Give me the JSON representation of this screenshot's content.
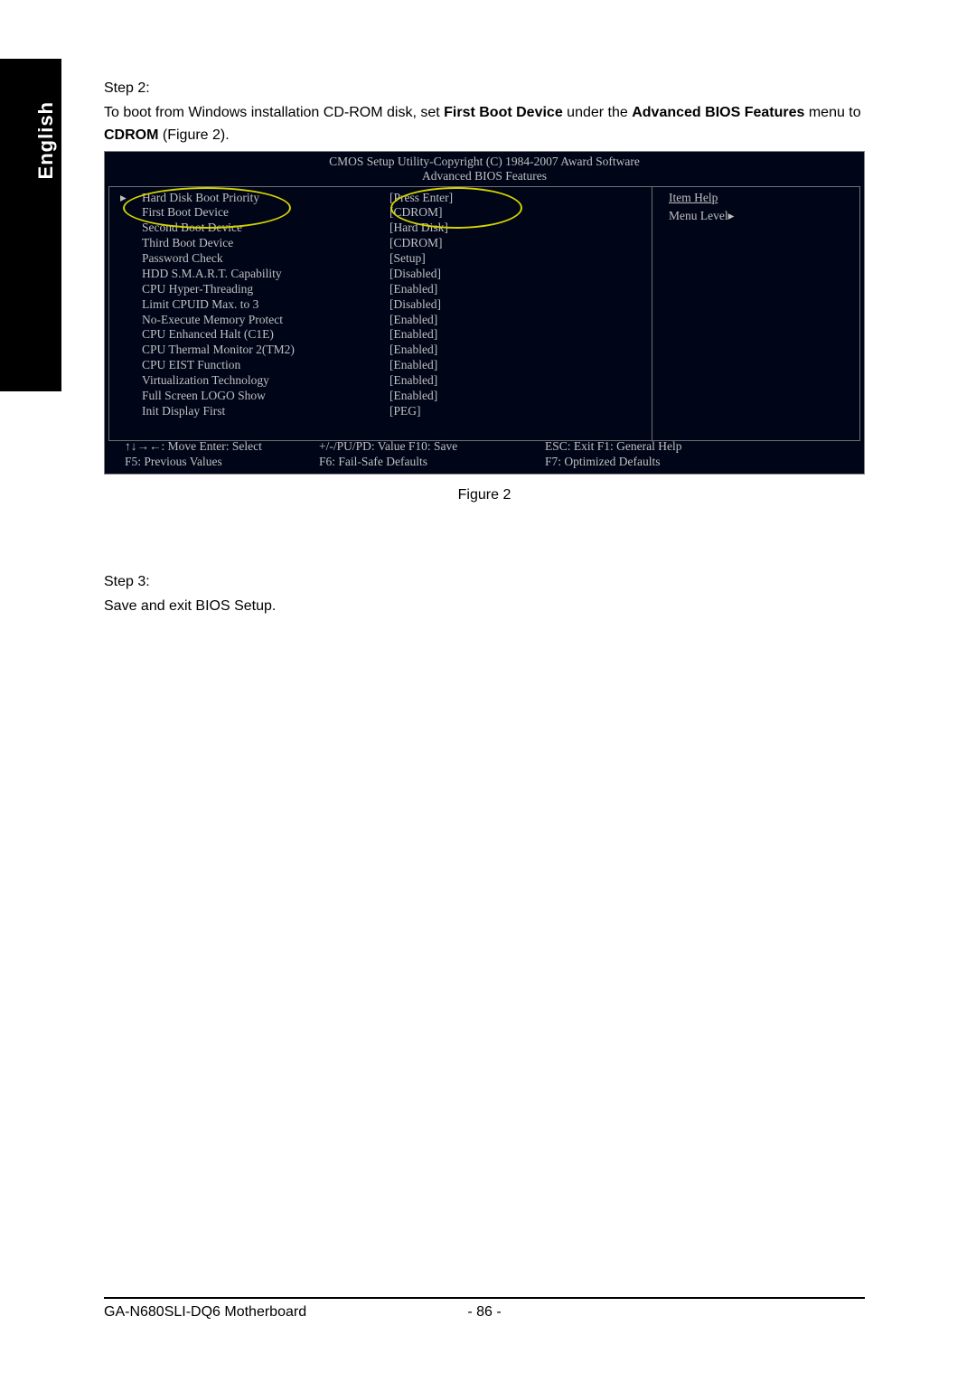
{
  "language_tab": "English",
  "step2_title": "Step 2:",
  "step2_text_parts": {
    "p1": "To boot from Windows installation CD-ROM disk, set ",
    "b1": "First Boot Device",
    "p2": " under the ",
    "b2": "Advanced BIOS Features",
    "p3": " menu to ",
    "b3": "CDROM",
    "p4": " (Figure 2)."
  },
  "bios": {
    "header_line1": "CMOS Setup Utility-Copyright (C) 1984-2007 Award Software",
    "header_line2": "Advanced BIOS Features",
    "arrow": "▸",
    "rows": [
      {
        "label": "Hard Disk Boot Priority",
        "value": "[Press Enter]"
      },
      {
        "label": "First Boot Device",
        "value": "[CDROM]"
      },
      {
        "label": "Second Boot Device",
        "value": "[Hard Disk]"
      },
      {
        "label": "Third Boot Device",
        "value": "[CDROM]"
      },
      {
        "label": "Password Check",
        "value": "[Setup]"
      },
      {
        "label": "HDD S.M.A.R.T. Capability",
        "value": "[Disabled]"
      },
      {
        "label": "CPU Hyper-Threading",
        "value": "[Enabled]"
      },
      {
        "label": "Limit CPUID Max. to 3",
        "value": "[Disabled]"
      },
      {
        "label": "No-Execute Memory Protect",
        "value": "[Enabled]"
      },
      {
        "label": "CPU Enhanced Halt (C1E)",
        "value": "[Enabled]"
      },
      {
        "label": "CPU Thermal Monitor 2(TM2)",
        "value": "[Enabled]"
      },
      {
        "label": "CPU EIST Function",
        "value": "[Enabled]"
      },
      {
        "label": "Virtualization Technology",
        "value": "[Enabled]"
      },
      {
        "label": "Full Screen LOGO Show",
        "value": "[Enabled]"
      },
      {
        "label": "Init Display First",
        "value": "[PEG]"
      }
    ],
    "help_title": "Item Help",
    "help_level": "Menu Level▸",
    "footer": {
      "r1c1": "↑↓→←: Move      Enter: Select",
      "r1c2": "+/-/PU/PD: Value        F10: Save",
      "r1c3": "ESC: Exit        F1: General Help",
      "r2c1": "F5: Previous Values",
      "r2c2": "F6: Fail-Safe Defaults",
      "r2c3": "F7: Optimized Defaults"
    }
  },
  "figure_caption": "Figure 2",
  "step3_title": "Step 3:",
  "step3_text": "Save and exit BIOS Setup.",
  "footer_product": "GA-N680SLI-DQ6 Motherboard",
  "footer_page": "- 86 -",
  "colors": {
    "bios_bg": "#000518",
    "bios_text": "#c0c0c0",
    "highlight": "#d4d400"
  }
}
